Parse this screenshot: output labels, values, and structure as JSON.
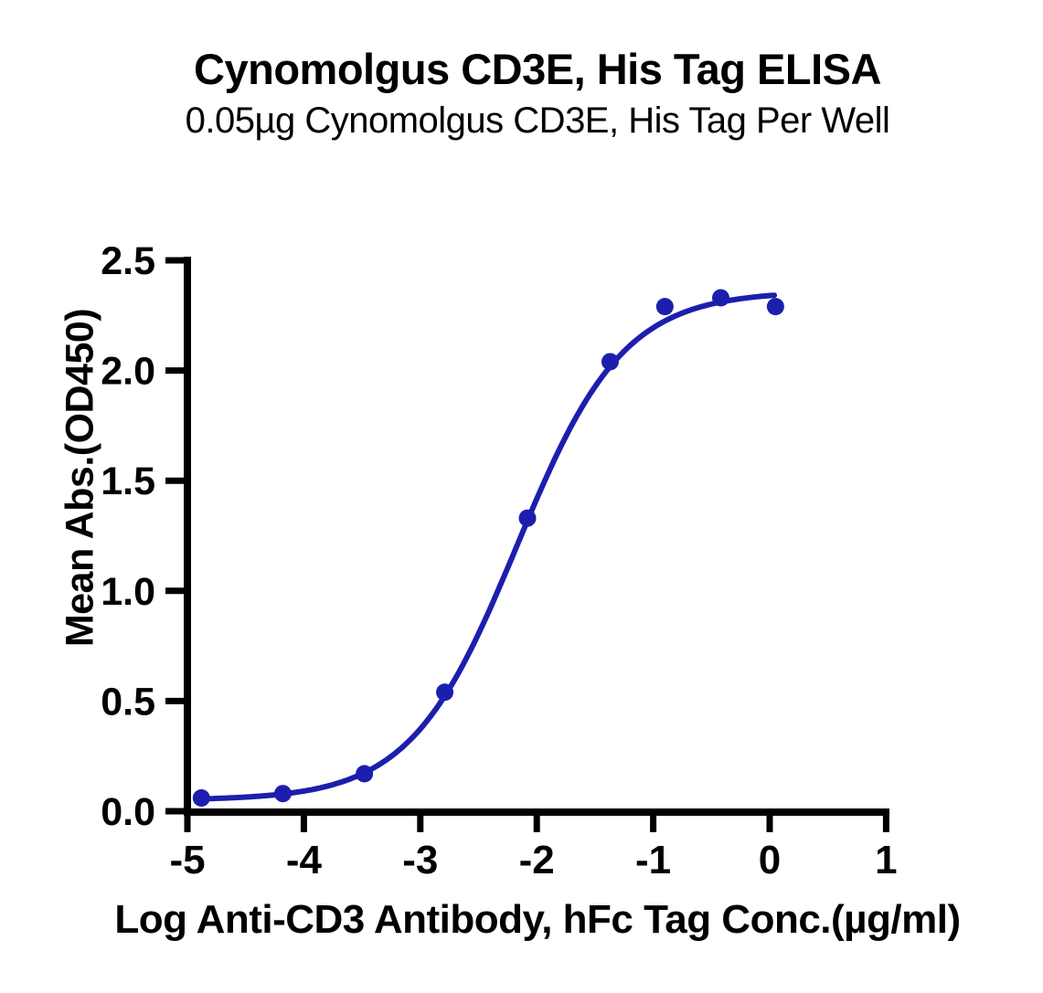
{
  "chart_data": {
    "type": "scatter",
    "title": "Cynomolgus CD3E, His Tag ELISA",
    "subtitle": "0.05µg Cynomolgus CD3E, His Tag Per Well",
    "xlabel": "Log Anti-CD3 Antibody, hFc Tag Conc.(µg/ml)",
    "ylabel": "Mean Abs.(OD450)",
    "xlim": [
      -5,
      1
    ],
    "ylim": [
      0,
      2.5
    ],
    "x_ticks": [
      -5,
      -4,
      -3,
      -2,
      -1,
      0,
      1
    ],
    "x_tick_labels": [
      "-5",
      "-4",
      "-3",
      "-2",
      "-1",
      "0",
      "1"
    ],
    "y_ticks": [
      0,
      0.5,
      1,
      1.5,
      2,
      2.5
    ],
    "y_tick_labels": [
      "0.0",
      "0.5",
      "1.0",
      "1.5",
      "2.0",
      "2.5"
    ],
    "grid": false,
    "legend": null,
    "series": [
      {
        "name": "Anti-CD3 Antibody, hFc Tag",
        "marker": "circle",
        "color": "#1C1FAD",
        "points": [
          [
            -4.88,
            0.06
          ],
          [
            -4.18,
            0.08
          ],
          [
            -3.48,
            0.17
          ],
          [
            -2.79,
            0.54
          ],
          [
            -2.08,
            1.33
          ],
          [
            -1.37,
            2.04
          ],
          [
            -0.9,
            2.29
          ],
          [
            -0.42,
            2.33
          ],
          [
            0.05,
            2.29
          ]
        ]
      }
    ],
    "fit_curve": {
      "model": "4PL",
      "bottom": 0.05,
      "top": 2.36,
      "log_ec50": -2.17,
      "hill_slope": 0.95,
      "x_start": -4.88,
      "x_end": 0.04,
      "color": "#1C1FAD"
    },
    "colors": {
      "axis": "#000000",
      "text": "#000000",
      "background": "#FFFFFF",
      "curve": "#1C1FAD"
    }
  }
}
